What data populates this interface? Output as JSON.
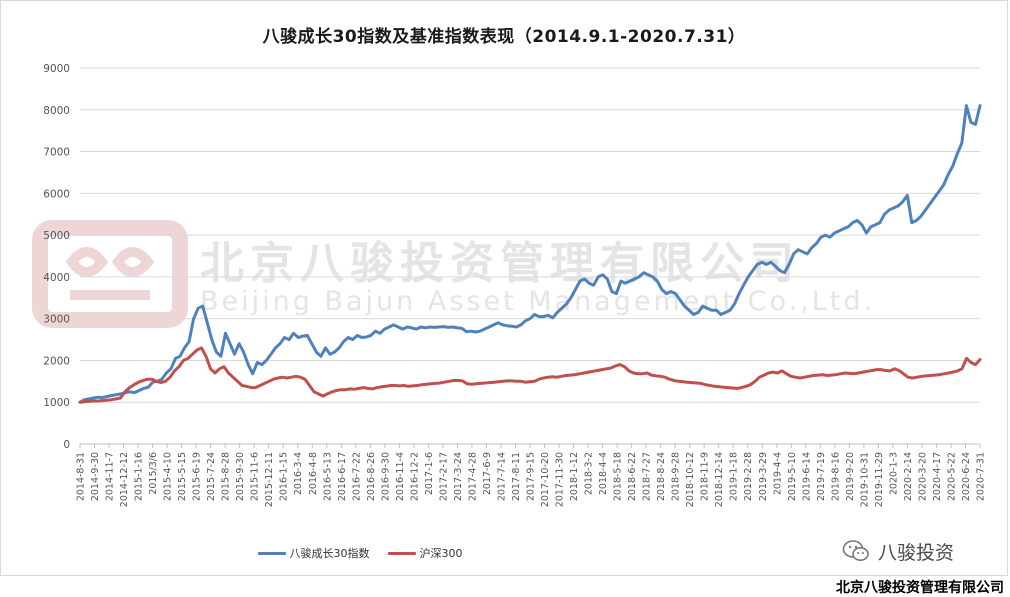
{
  "title": "八骏成长30指数及基准指数表现（2014.9.1-2020.7.31）",
  "watermark": {
    "cn": "北京八骏投资管理有限公司",
    "en": "Beijing Bajun Asset Management Co.,Ltd."
  },
  "wechat_account": "八骏投资",
  "footer_company": "北京八骏投资管理有限公司",
  "colors": {
    "series1": "#4f81bd",
    "series2": "#c0504d",
    "gridline": "#d9d9d9",
    "watermark": "#d9d9d9",
    "logo": "#e8c9c8"
  },
  "chart_data": {
    "type": "line",
    "title": "八骏成长30指数及基准指数表现（2014.9.1-2020.7.31）",
    "ylim": [
      0,
      9000
    ],
    "yticks": [
      0,
      1000,
      2000,
      3000,
      4000,
      5000,
      6000,
      7000,
      8000,
      9000
    ],
    "grid": true,
    "legend_position": "bottom",
    "x_labels": [
      "2014-8-31",
      "2014-9-30",
      "2014-11-7",
      "2014-12-12",
      "2015-1-16",
      "2015/3/6",
      "2015-4-10",
      "2015-5-15",
      "2015-6-19",
      "2015-7-24",
      "2015-8-28",
      "2015-9-30",
      "2015-11-6",
      "2015-12-11",
      "2016-1-15",
      "2016-3-4",
      "2016-4-8",
      "2016-5-13",
      "2016-6-17",
      "2016-7-22",
      "2016-8-26",
      "2016-9-30",
      "2016-11-4",
      "2016-12-2",
      "2017-1-6",
      "2017-2-17",
      "2017-3-24",
      "2017-4-28",
      "2017-6-9",
      "2017-7-14",
      "2017-8-11",
      "2017-9-15",
      "2017-10-20",
      "2017-11-30",
      "2018-1-12",
      "2018-3-2",
      "2018-4-4",
      "2018-5-18",
      "2018-6-22",
      "2018-7-27",
      "2018-8-24",
      "2018-9-28",
      "2018-10-12",
      "2018-11-9",
      "2018-12-14",
      "2019-1-18",
      "2019-2-28",
      "2019-3-29",
      "2019-4-4",
      "2019-5-10",
      "2019-6-14",
      "2019-7-19",
      "2019-8-16",
      "2019-9-20",
      "2019-10-31",
      "2019-11-29",
      "2020-1-3",
      "2020-2-14",
      "2020-3-20",
      "2020-4-17",
      "2020-5-22",
      "2020-6-24",
      "2020-7-31"
    ],
    "series": [
      {
        "name": "八骏成长30指数",
        "values": [
          1000,
          1060,
          1080,
          1100,
          1120,
          1110,
          1140,
          1160,
          1180,
          1200,
          1230,
          1250,
          1230,
          1280,
          1330,
          1360,
          1480,
          1500,
          1550,
          1700,
          1800,
          2050,
          2100,
          2300,
          2450,
          3000,
          3250,
          3300,
          2900,
          2500,
          2200,
          2100,
          2650,
          2400,
          2150,
          2400,
          2200,
          1900,
          1680,
          1950,
          1900,
          2000,
          2150,
          2300,
          2400,
          2550,
          2500,
          2650,
          2550,
          2580,
          2600,
          2400,
          2200,
          2100,
          2300,
          2150,
          2200,
          2300,
          2450,
          2550,
          2500,
          2600,
          2550,
          2560,
          2600,
          2700,
          2650,
          2750,
          2800,
          2850,
          2800,
          2750,
          2800,
          2780,
          2750,
          2800,
          2780,
          2800,
          2790,
          2800,
          2810,
          2790,
          2800,
          2780,
          2770,
          2690,
          2700,
          2680,
          2700,
          2750,
          2800,
          2850,
          2900,
          2850,
          2830,
          2820,
          2800,
          2850,
          2950,
          3000,
          3100,
          3050,
          3050,
          3080,
          3020,
          3150,
          3250,
          3350,
          3500,
          3700,
          3900,
          3950,
          3850,
          3800,
          4000,
          4050,
          3950,
          3650,
          3600,
          3900,
          3850,
          3900,
          3950,
          4000,
          4100,
          4050,
          4000,
          3900,
          3700,
          3600,
          3650,
          3600,
          3450,
          3300,
          3200,
          3100,
          3150,
          3300,
          3250,
          3200,
          3200,
          3100,
          3150,
          3200,
          3350,
          3600,
          3800,
          4000,
          4150,
          4300,
          4350,
          4300,
          4350,
          4250,
          4150,
          4100,
          4300,
          4550,
          4650,
          4600,
          4550,
          4700,
          4800,
          4950,
          5000,
          4950,
          5050,
          5100,
          5150,
          5200,
          5300,
          5350,
          5250,
          5050,
          5200,
          5250,
          5300,
          5500,
          5600,
          5650,
          5700,
          5800,
          5950,
          5300,
          5350,
          5450,
          5600,
          5750,
          5900,
          6050,
          6200,
          6450,
          6650,
          6950,
          7200,
          8100,
          7700,
          7650,
          8100
        ]
      },
      {
        "name": "沪深300",
        "values": [
          1000,
          1010,
          1020,
          1030,
          1030,
          1040,
          1050,
          1060,
          1080,
          1100,
          1250,
          1350,
          1420,
          1480,
          1520,
          1550,
          1550,
          1500,
          1470,
          1500,
          1600,
          1750,
          1850,
          2000,
          2050,
          2150,
          2250,
          2300,
          2100,
          1800,
          1700,
          1800,
          1850,
          1700,
          1600,
          1500,
          1400,
          1380,
          1350,
          1350,
          1400,
          1450,
          1500,
          1550,
          1580,
          1600,
          1580,
          1600,
          1620,
          1600,
          1550,
          1400,
          1250,
          1200,
          1150,
          1200,
          1250,
          1280,
          1300,
          1300,
          1320,
          1310,
          1330,
          1350,
          1330,
          1320,
          1350,
          1370,
          1380,
          1400,
          1400,
          1390,
          1400,
          1380,
          1390,
          1400,
          1420,
          1430,
          1440,
          1450,
          1460,
          1480,
          1500,
          1520,
          1520,
          1510,
          1440,
          1430,
          1440,
          1450,
          1460,
          1470,
          1480,
          1490,
          1500,
          1510,
          1510,
          1500,
          1500,
          1480,
          1490,
          1500,
          1550,
          1580,
          1600,
          1610,
          1600,
          1620,
          1640,
          1650,
          1660,
          1680,
          1700,
          1720,
          1740,
          1760,
          1780,
          1800,
          1820,
          1870,
          1900,
          1850,
          1750,
          1700,
          1680,
          1680,
          1700,
          1650,
          1630,
          1620,
          1600,
          1550,
          1520,
          1500,
          1490,
          1480,
          1470,
          1460,
          1450,
          1420,
          1400,
          1380,
          1370,
          1360,
          1350,
          1340,
          1330,
          1350,
          1380,
          1420,
          1500,
          1600,
          1650,
          1700,
          1720,
          1700,
          1750,
          1680,
          1620,
          1600,
          1580,
          1600,
          1620,
          1640,
          1650,
          1660,
          1640,
          1650,
          1660,
          1680,
          1700,
          1690,
          1680,
          1700,
          1720,
          1740,
          1760,
          1780,
          1780,
          1760,
          1750,
          1800,
          1760,
          1680,
          1600,
          1580,
          1600,
          1620,
          1630,
          1640,
          1650,
          1660,
          1680,
          1700,
          1720,
          1750,
          1800,
          2050,
          1950,
          1900,
          2020
        ]
      }
    ]
  }
}
